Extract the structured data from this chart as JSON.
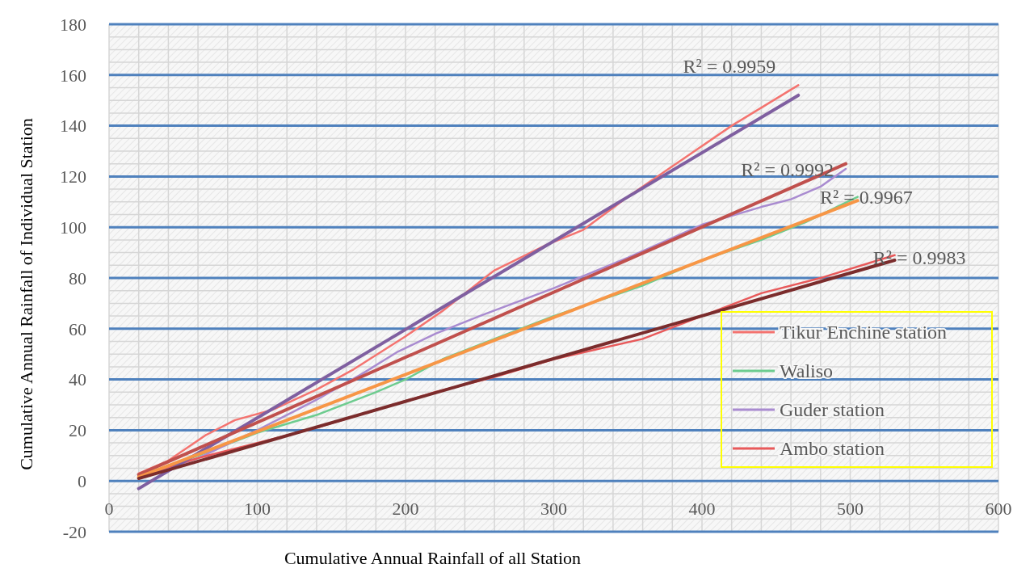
{
  "chart_data": {
    "type": "line",
    "xlabel": "Cumulative Annual Rainfall of all Station",
    "ylabel": "Cumulative Annual Rainfall of Individual Station",
    "xlim": [
      0,
      600
    ],
    "ylim": [
      -20,
      180
    ],
    "xticks": [
      0,
      100,
      200,
      300,
      400,
      500,
      600
    ],
    "yticks": [
      -20,
      0,
      20,
      40,
      60,
      80,
      100,
      120,
      140,
      160,
      180
    ],
    "grid": true,
    "legend": "bottom right",
    "series": [
      {
        "name": "Tikur Enchine station",
        "color": "#f4736f",
        "x": [
          20,
          40,
          65,
          85,
          110,
          140,
          165,
          200,
          225,
          260,
          295,
          320,
          350,
          390,
          420,
          465
        ],
        "values": [
          3,
          8,
          18,
          24,
          28,
          36,
          44,
          57,
          67,
          83,
          93,
          99,
          112,
          128,
          140,
          156
        ]
      },
      {
        "name": "Waliso",
        "color": "#6dcc8f",
        "x": [
          20,
          60,
          100,
          140,
          180,
          200,
          225,
          260,
          300,
          360,
          400,
          440,
          470,
          505
        ],
        "values": [
          2,
          10,
          19,
          26,
          35,
          40,
          48,
          56,
          65,
          77,
          87,
          95,
          102,
          112
        ]
      },
      {
        "name": "Guder station",
        "color": "#a98bd0",
        "x": [
          20,
          60,
          100,
          140,
          170,
          195,
          220,
          250,
          300,
          350,
          400,
          440,
          460,
          480,
          497
        ],
        "values": [
          1,
          9,
          20,
          32,
          42,
          51,
          58,
          65,
          76,
          88,
          101,
          108,
          111,
          116,
          123
        ]
      },
      {
        "name": "Ambo station",
        "color": "#e8595a",
        "x": [
          20,
          60,
          100,
          140,
          180,
          220,
          260,
          300,
          360,
          400,
          440,
          480,
          530
        ],
        "values": [
          2,
          9,
          15,
          21,
          28,
          35,
          41,
          48,
          56,
          65,
          74,
          80,
          89
        ]
      },
      {
        "type": "line",
        "color": "#7f5fa0",
        "x": [
          20,
          465
        ],
        "values": [
          -3,
          152
        ]
      },
      {
        "type": "line",
        "color": "#c0504d",
        "x": [
          20,
          497
        ],
        "values": [
          2.5,
          125
        ]
      },
      {
        "type": "line",
        "color": "#f79646",
        "x": [
          20,
          505
        ],
        "values": [
          1.5,
          110.5
        ]
      },
      {
        "type": "line",
        "color": "#7b2c2c",
        "x": [
          20,
          530
        ],
        "values": [
          1,
          87
        ]
      }
    ],
    "annotations": [
      "R² = 0.9959",
      "R² = 0.9992",
      "R² = 0.9967",
      "R² = 0.9983"
    ]
  }
}
